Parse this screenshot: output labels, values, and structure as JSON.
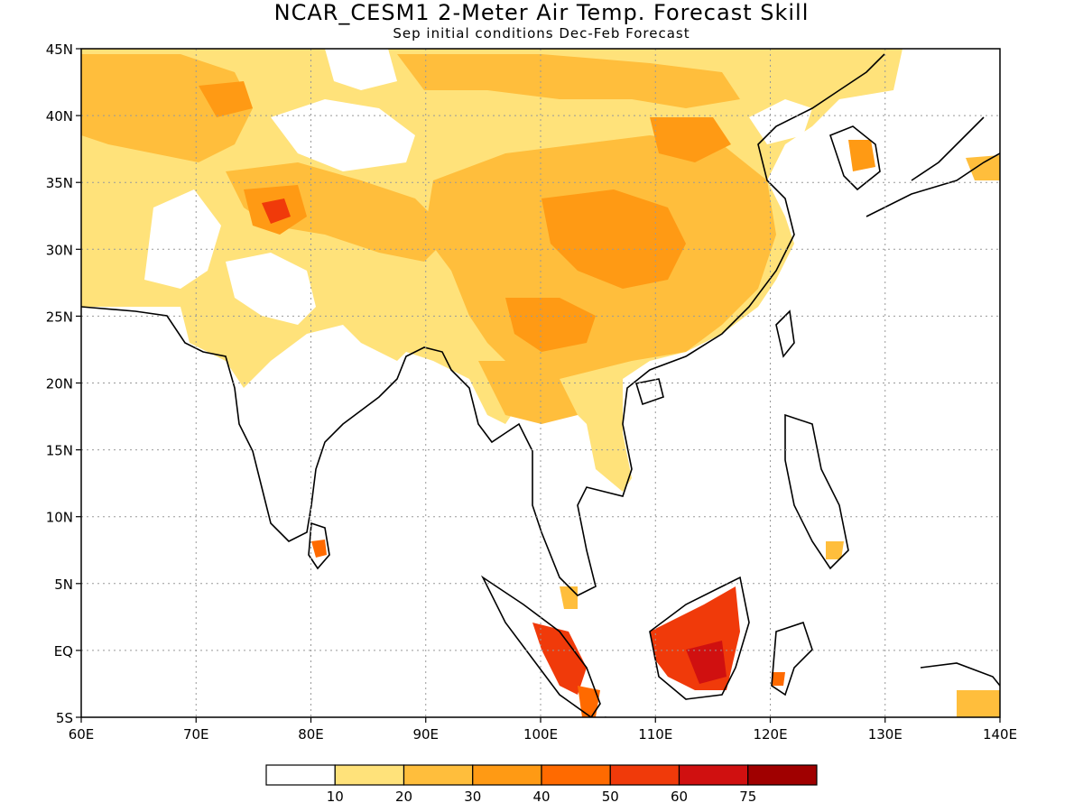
{
  "title": "NCAR_CESM1 2-Meter Air Temp. Forecast Skill",
  "subtitle": "Sep initial conditions  Dec-Feb Forecast",
  "map": {
    "lon_range": [
      60,
      140
    ],
    "lat_range": [
      -5,
      45
    ],
    "lon_ticks": [
      "60E",
      "70E",
      "80E",
      "90E",
      "100E",
      "110E",
      "120E",
      "130E",
      "140E"
    ],
    "lat_ticks": [
      "45N",
      "40N",
      "35N",
      "30N",
      "25N",
      "20N",
      "15N",
      "10N",
      "5N",
      "EQ",
      "5S"
    ],
    "grid": "dotted gridlines every 10° longitude and 5° latitude"
  },
  "colorbar": {
    "bins": [
      {
        "color": "#ffffff"
      },
      {
        "color": "#ffe27a"
      },
      {
        "color": "#ffbe3c"
      },
      {
        "color": "#ff9a14"
      },
      {
        "color": "#ff6a00"
      },
      {
        "color": "#f03a0a"
      },
      {
        "color": "#d01010"
      },
      {
        "color": "#a00000"
      }
    ],
    "labels": [
      "10",
      "20",
      "30",
      "40",
      "50",
      "60",
      "75"
    ]
  },
  "colors": {
    "skill_10_20": "#ffe27a",
    "skill_20_30": "#ffbe3c",
    "skill_30_40": "#ff9a14",
    "skill_40_50": "#ff6a00",
    "skill_50_60": "#f03a0a",
    "skill_60_75": "#d01010",
    "skill_75_plus": "#a00000",
    "coastline": "#000000"
  }
}
